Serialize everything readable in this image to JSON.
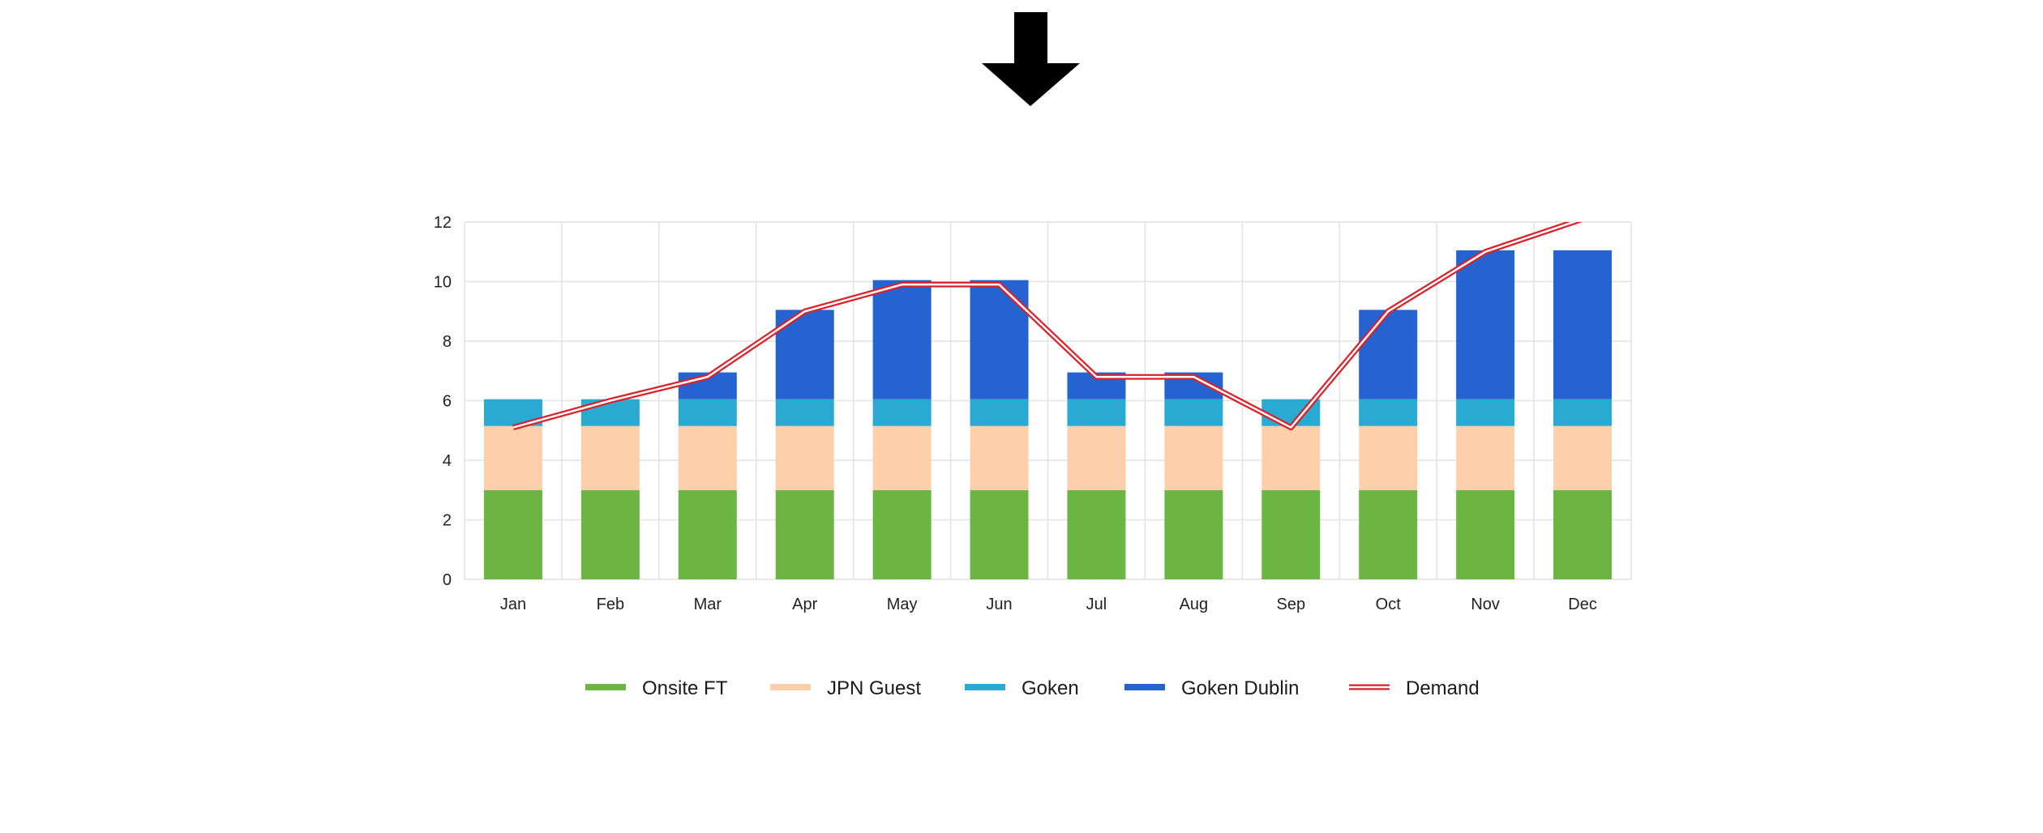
{
  "header_icon": "down-arrow-icon",
  "colors": {
    "onsite_ft": "#6db543",
    "jpn_guest": "#fdd0ab",
    "goken": "#28aad2",
    "goken_dublin": "#2563d1",
    "demand": "#d9222a",
    "grid": "#e2e2e2"
  },
  "chart_data": {
    "type": "bar",
    "stacked": true,
    "categories": [
      "Jan",
      "Feb",
      "Mar",
      "Apr",
      "May",
      "Jun",
      "Jul",
      "Aug",
      "Sep",
      "Oct",
      "Nov",
      "Dec"
    ],
    "ylim": [
      0,
      12
    ],
    "yticks": [
      "0",
      "2",
      "4",
      "6",
      "8",
      "10",
      "12"
    ],
    "grid": true,
    "legend_position": "bottom",
    "series": [
      {
        "name": "Onsite FT",
        "kind": "bar",
        "values": [
          3,
          3,
          3,
          3,
          3,
          3,
          3,
          3,
          3,
          3,
          3,
          3
        ]
      },
      {
        "name": "JPN Guest",
        "kind": "bar",
        "values": [
          2.15,
          2.15,
          2.15,
          2.15,
          2.15,
          2.15,
          2.15,
          2.15,
          2.15,
          2.15,
          2.15,
          2.15
        ]
      },
      {
        "name": "Goken",
        "kind": "bar",
        "values": [
          0.9,
          0.9,
          0.9,
          0.9,
          0.9,
          0.9,
          0.9,
          0.9,
          0.9,
          0.9,
          0.9,
          0.9
        ]
      },
      {
        "name": "Goken Dublin",
        "kind": "bar",
        "values": [
          0,
          0,
          0.9,
          3,
          4,
          4,
          0.9,
          0.9,
          0,
          3,
          5,
          5
        ]
      },
      {
        "name": "Demand",
        "kind": "line",
        "values": [
          5.1,
          6,
          6.8,
          9,
          9.9,
          9.9,
          6.8,
          6.8,
          5.1,
          9,
          11,
          12.1
        ]
      }
    ]
  }
}
